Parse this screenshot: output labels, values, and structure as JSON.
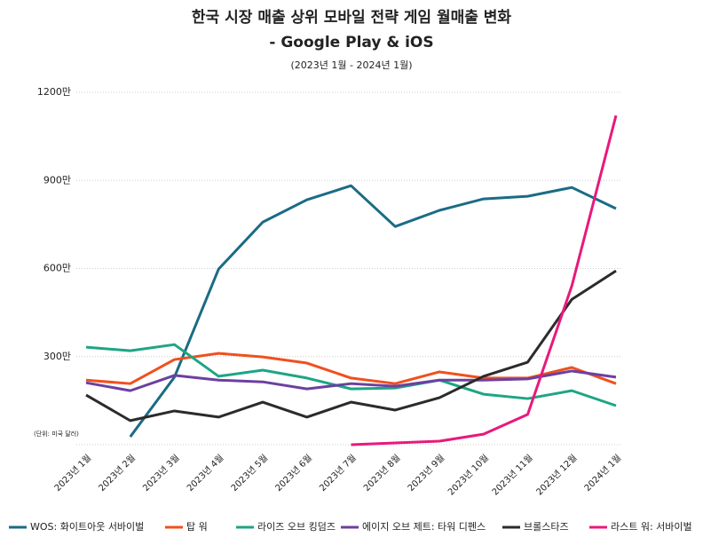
{
  "chart_data": {
    "type": "line",
    "title": "한국 시장 매출 상위 모바일 전략 게임 월매출 변화",
    "subtitle": "- Google Play & iOS",
    "period": "(2023년 1월 - 2024년 1월)",
    "unit_note": "(단위: 미국 달러)",
    "categories": [
      "2023년 1월",
      "2023년 2월",
      "2023년 3월",
      "2023년 4월",
      "2023년 5월",
      "2023년 6월",
      "2023년 7월",
      "2023년 8월",
      "2023년 9월",
      "2023년 10월",
      "2023년 11월",
      "2023년 12월",
      "2024년 1월"
    ],
    "ylim": [
      0,
      1200
    ],
    "yticks": [
      {
        "value": 300,
        "label": "300만"
      },
      {
        "value": 600,
        "label": "600만"
      },
      {
        "value": 900,
        "label": "900만"
      },
      {
        "value": 1200,
        "label": "1200만"
      }
    ],
    "grid": true,
    "legend": "bottom",
    "series": [
      {
        "name": "WOS: 화이트아웃 서바이벌",
        "color": "#1b6b85",
        "values": [
          null,
          27,
          230,
          598,
          758,
          834,
          882,
          743,
          798,
          837,
          846,
          876,
          804
        ]
      },
      {
        "name": "탑 워",
        "color": "#f0501e",
        "values": [
          220,
          208,
          290,
          311,
          299,
          278,
          227,
          208,
          248,
          227,
          227,
          263,
          208
        ]
      },
      {
        "name": "라이즈 오브 킹덤즈",
        "color": "#1ea584",
        "values": [
          332,
          320,
          341,
          233,
          254,
          227,
          190,
          193,
          220,
          172,
          157,
          184,
          133
        ]
      },
      {
        "name": "에이지 오브 제트: 타워 디펜스",
        "color": "#6c40a0",
        "values": [
          211,
          184,
          236,
          220,
          214,
          190,
          208,
          199,
          220,
          220,
          224,
          251,
          230
        ]
      },
      {
        "name": "브롤스타즈",
        "color": "#2b2b2b",
        "values": [
          169,
          82,
          115,
          94,
          145,
          94,
          145,
          118,
          160,
          233,
          281,
          495,
          592
        ]
      },
      {
        "name": "라스트 워: 서바이벌",
        "color": "#e8197c",
        "values": [
          null,
          null,
          null,
          null,
          null,
          null,
          0,
          6,
          12,
          36,
          103,
          541,
          1121
        ]
      }
    ]
  }
}
